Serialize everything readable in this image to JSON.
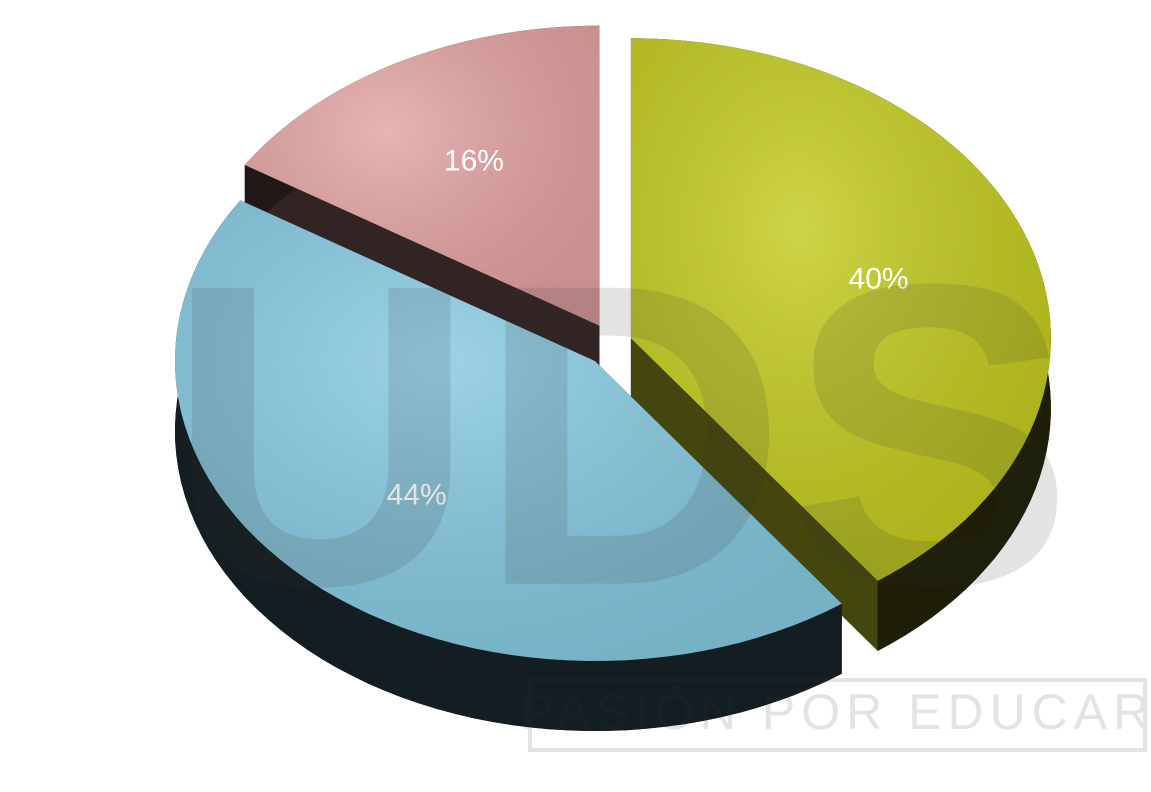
{
  "chart_data": {
    "type": "pie",
    "values": [
      40,
      44,
      16
    ],
    "value_labels": [
      "40%",
      "44%",
      "16%"
    ],
    "colors": [
      "#c3cb1f",
      "#86c9e1",
      "#e3a3a2"
    ]
  },
  "watermark": {
    "logo": "UDS",
    "tagline": "PASIÓN POR EDUCAR"
  }
}
